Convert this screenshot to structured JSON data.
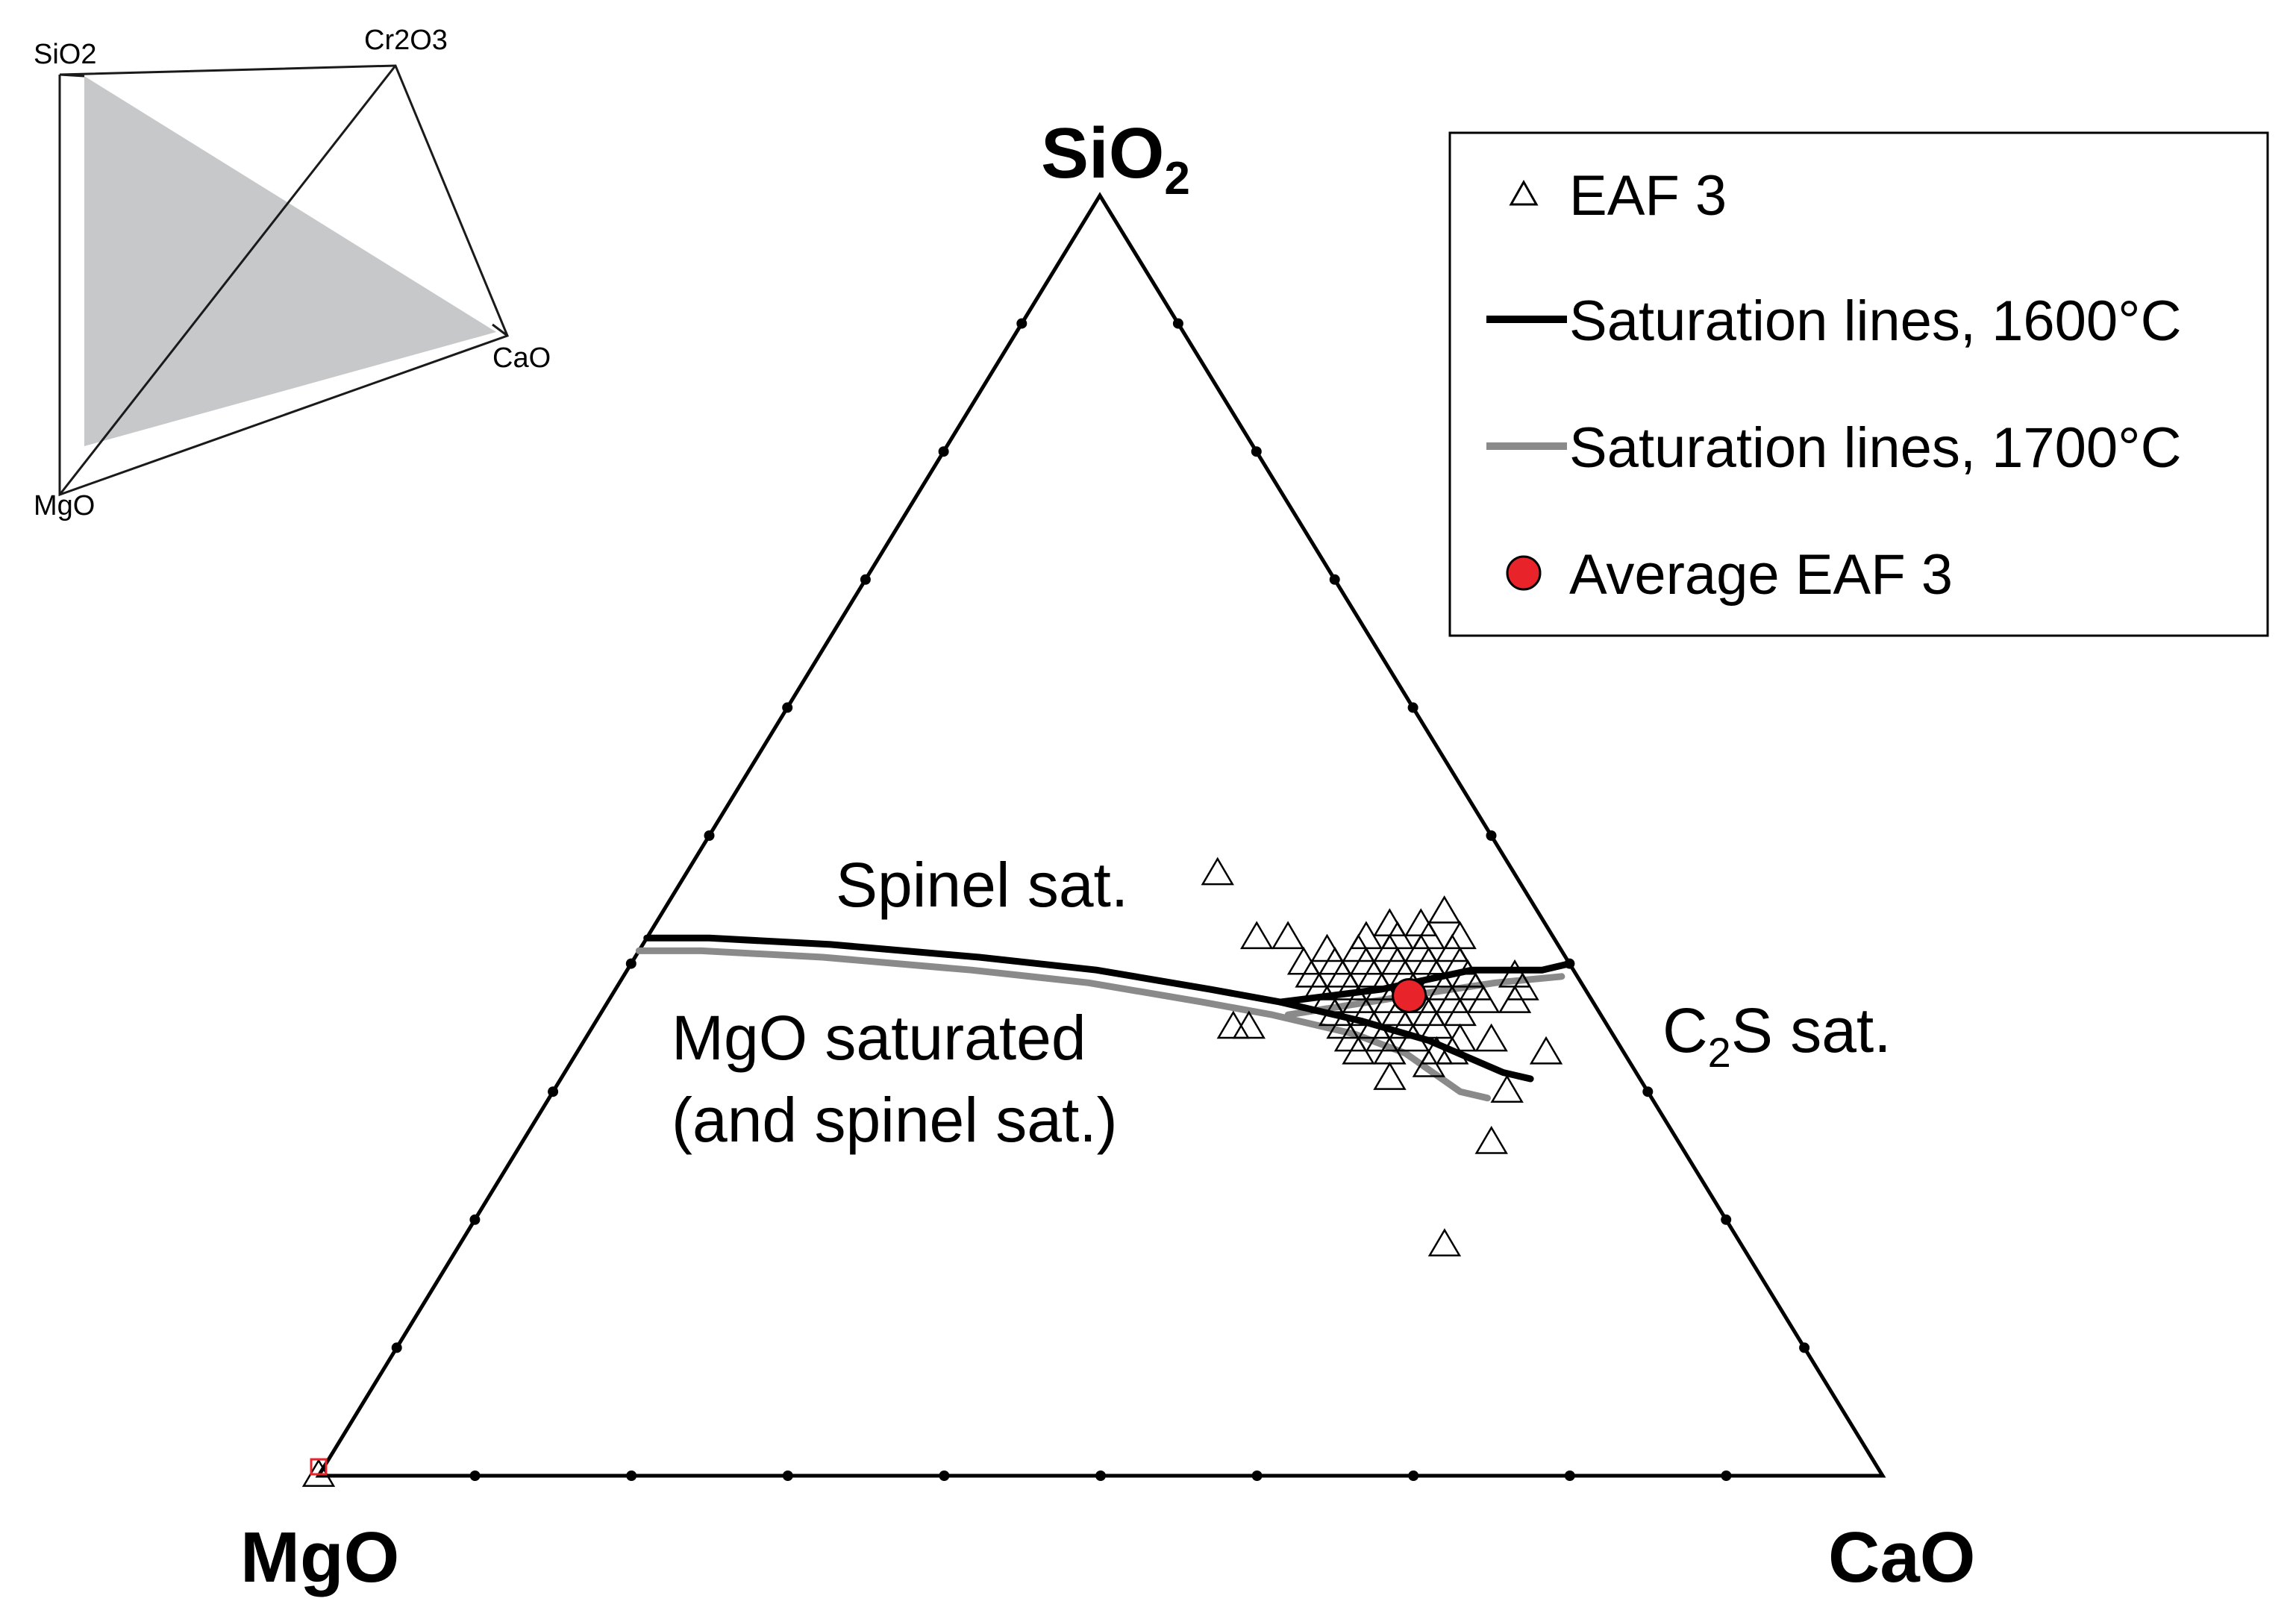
{
  "inset": {
    "labels": {
      "sio2": "SiO2",
      "cr2o3": "Cr2O3",
      "cao": "CaO",
      "mgo": "MgO"
    },
    "plane_color": "#c6c8ca",
    "edge_color": "#1a1a1a"
  },
  "chart_data": {
    "type": "scatter",
    "subtype": "ternary",
    "components": [
      "SiO2",
      "MgO",
      "CaO"
    ],
    "apex_labels": {
      "top": {
        "main": "SiO",
        "sub": "2"
      },
      "left": "MgO",
      "right": "CaO"
    },
    "ticks_per_edge": 9,
    "tick_step": 0.1,
    "grid": false,
    "legend_position": "top-right",
    "legend": [
      {
        "key": "eaf",
        "label": "EAF 3",
        "marker": "triangle-open"
      },
      {
        "key": "sat1600",
        "label": "Saturation lines, 1600°C",
        "marker": "line",
        "color": "#000000"
      },
      {
        "key": "sat1700",
        "label": "Saturation lines, 1700°C",
        "marker": "line",
        "color": "#8a8a8a"
      },
      {
        "key": "avg",
        "label": "Average EAF 3",
        "marker": "circle-filled",
        "color": "#e8232a"
      }
    ],
    "annotations": {
      "spinel": "Spinel sat.",
      "mgo_line1": "MgO saturated",
      "mgo_line2": "(and spinel sat.)",
      "c2s_c": "C",
      "c2s_sub": "2",
      "c2s_rest": "S sat."
    },
    "series": [
      {
        "key": "sat1600",
        "label": "Saturation lines, 1600°C",
        "color": "#000000",
        "points": [
          {
            "sio2": 0.42,
            "cao": 0.0
          },
          {
            "sio2": 0.42,
            "cao": 0.04
          },
          {
            "sio2": 0.415,
            "cao": 0.12
          },
          {
            "sio2": 0.405,
            "cao": 0.22
          },
          {
            "sio2": 0.395,
            "cao": 0.3
          },
          {
            "sio2": 0.38,
            "cao": 0.38
          },
          {
            "sio2": 0.37,
            "cao": 0.43
          },
          {
            "sio2": 0.355,
            "cao": 0.49
          },
          {
            "sio2": 0.34,
            "cao": 0.54
          },
          {
            "sio2": 0.315,
            "cao": 0.6
          },
          {
            "sio2": 0.31,
            "cao": 0.62
          }
        ]
      },
      {
        "key": "sat1600_c2s",
        "label": "Saturation lines, 1600°C",
        "color": "#000000",
        "points": [
          {
            "sio2": 0.37,
            "cao": 0.43
          },
          {
            "sio2": 0.38,
            "cao": 0.49
          },
          {
            "sio2": 0.395,
            "cao": 0.54
          },
          {
            "sio2": 0.395,
            "cao": 0.585
          },
          {
            "sio2": 0.4,
            "cao": 0.6
          }
        ]
      },
      {
        "key": "sat1700",
        "label": "Saturation lines, 1700°C",
        "color": "#8a8a8a",
        "points": [
          {
            "sio2": 0.41,
            "cao": 0.0
          },
          {
            "sio2": 0.41,
            "cao": 0.04
          },
          {
            "sio2": 0.405,
            "cao": 0.12
          },
          {
            "sio2": 0.395,
            "cao": 0.22
          },
          {
            "sio2": 0.385,
            "cao": 0.3
          },
          {
            "sio2": 0.37,
            "cao": 0.38
          },
          {
            "sio2": 0.36,
            "cao": 0.43
          },
          {
            "sio2": 0.345,
            "cao": 0.49
          },
          {
            "sio2": 0.33,
            "cao": 0.53
          },
          {
            "sio2": 0.3,
            "cao": 0.58
          },
          {
            "sio2": 0.295,
            "cao": 0.6
          }
        ]
      },
      {
        "key": "sat1700_c2s",
        "label": "Saturation lines, 1700°C",
        "color": "#8a8a8a",
        "points": [
          {
            "sio2": 0.36,
            "cao": 0.44
          },
          {
            "sio2": 0.375,
            "cao": 0.51
          },
          {
            "sio2": 0.385,
            "cao": 0.56
          },
          {
            "sio2": 0.39,
            "cao": 0.6
          }
        ]
      }
    ],
    "eaf_points": [
      [
        0.47,
        0.34
      ],
      [
        0.42,
        0.39
      ],
      [
        0.42,
        0.41
      ],
      [
        0.35,
        0.41
      ],
      [
        0.35,
        0.42
      ],
      [
        0.44,
        0.5
      ],
      [
        0.43,
        0.47
      ],
      [
        0.43,
        0.49
      ],
      [
        0.42,
        0.46
      ],
      [
        0.42,
        0.48
      ],
      [
        0.42,
        0.5
      ],
      [
        0.42,
        0.52
      ],
      [
        0.41,
        0.44
      ],
      [
        0.41,
        0.46
      ],
      [
        0.41,
        0.48
      ],
      [
        0.41,
        0.5
      ],
      [
        0.41,
        0.52
      ],
      [
        0.4,
        0.43
      ],
      [
        0.4,
        0.45
      ],
      [
        0.4,
        0.47
      ],
      [
        0.4,
        0.49
      ],
      [
        0.4,
        0.51
      ],
      [
        0.4,
        0.53
      ],
      [
        0.39,
        0.44
      ],
      [
        0.39,
        0.46
      ],
      [
        0.39,
        0.48
      ],
      [
        0.39,
        0.5
      ],
      [
        0.39,
        0.52
      ],
      [
        0.39,
        0.54
      ],
      [
        0.38,
        0.45
      ],
      [
        0.38,
        0.47
      ],
      [
        0.38,
        0.49
      ],
      [
        0.38,
        0.51
      ],
      [
        0.38,
        0.53
      ],
      [
        0.38,
        0.55
      ],
      [
        0.37,
        0.46
      ],
      [
        0.37,
        0.48
      ],
      [
        0.37,
        0.5
      ],
      [
        0.37,
        0.52
      ],
      [
        0.37,
        0.54
      ],
      [
        0.37,
        0.56
      ],
      [
        0.36,
        0.47
      ],
      [
        0.36,
        0.49
      ],
      [
        0.36,
        0.51
      ],
      [
        0.36,
        0.53
      ],
      [
        0.36,
        0.55
      ],
      [
        0.35,
        0.48
      ],
      [
        0.35,
        0.5
      ],
      [
        0.35,
        0.52
      ],
      [
        0.35,
        0.54
      ],
      [
        0.34,
        0.49
      ],
      [
        0.34,
        0.51
      ],
      [
        0.34,
        0.53
      ],
      [
        0.34,
        0.56
      ],
      [
        0.33,
        0.5
      ],
      [
        0.33,
        0.52
      ],
      [
        0.33,
        0.55
      ],
      [
        0.39,
        0.57
      ],
      [
        0.38,
        0.58
      ],
      [
        0.37,
        0.58
      ],
      [
        0.34,
        0.58
      ],
      [
        0.33,
        0.56
      ],
      [
        0.32,
        0.55
      ],
      [
        0.31,
        0.53
      ],
      [
        0.33,
        0.62
      ],
      [
        0.3,
        0.61
      ],
      [
        0.26,
        0.62
      ],
      [
        0.18,
        0.63
      ],
      [
        0.0,
        0.0
      ]
    ],
    "average": {
      "sio2": 0.375,
      "cao": 0.51
    },
    "origin_marker": {
      "sio2": 0.0,
      "cao": 0.0,
      "color": "#e8232a"
    }
  }
}
